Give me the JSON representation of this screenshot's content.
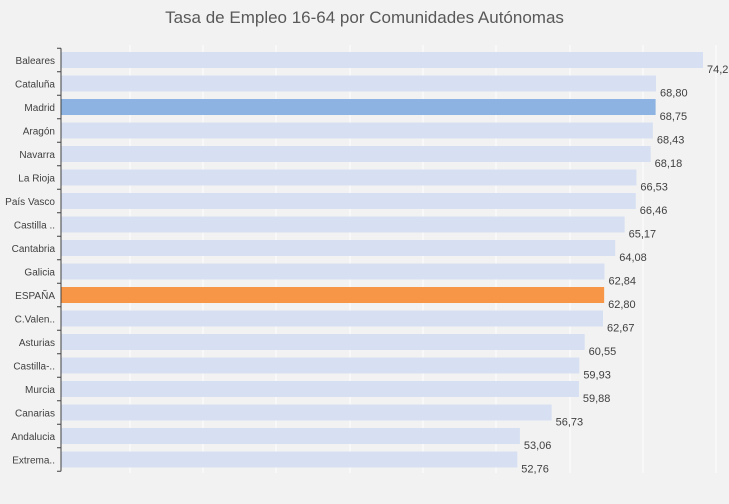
{
  "chart_data": {
    "type": "bar",
    "orientation": "horizontal",
    "title": "Tasa de Empleo 16-64 por Comunidades Autónomas",
    "xlabel": "",
    "ylabel": "",
    "grid": true,
    "categories": [
      "Baleares",
      "Cataluña",
      "Madrid",
      "Aragón",
      "Navarra",
      "La Rioja",
      "País Vasco",
      "Castilla ..",
      "Cantabria",
      "Galicia",
      "ESPAÑA",
      "C.Valen..",
      "Asturias",
      "Castilla-..",
      "Murcia",
      "Canarias",
      "Andalucia",
      "Extrema.."
    ],
    "values": [
      74.23,
      68.8,
      68.75,
      68.43,
      68.18,
      66.53,
      66.46,
      65.17,
      64.08,
      62.84,
      62.8,
      62.67,
      60.55,
      59.93,
      59.88,
      56.73,
      53.06,
      52.76
    ],
    "value_labels": [
      "74,23",
      "68,80",
      "68,75",
      "68,43",
      "68,18",
      "66,53",
      "66,46",
      "65,17",
      "64,08",
      "62,84",
      "62,80",
      "62,67",
      "60,55",
      "59,93",
      "59,88",
      "56,73",
      "53,06",
      "52,76"
    ],
    "xlim": [
      0,
      74.23
    ],
    "colors": {
      "default": "#d6e0f2",
      "highlight_madrid": "#8db3e2",
      "highlight_espana": "#f79646",
      "background": "#f2f2f2",
      "grid": "#ffffff"
    },
    "highlights": {
      "Madrid": "highlight_madrid",
      "ESPAÑA": "highlight_espana"
    }
  }
}
